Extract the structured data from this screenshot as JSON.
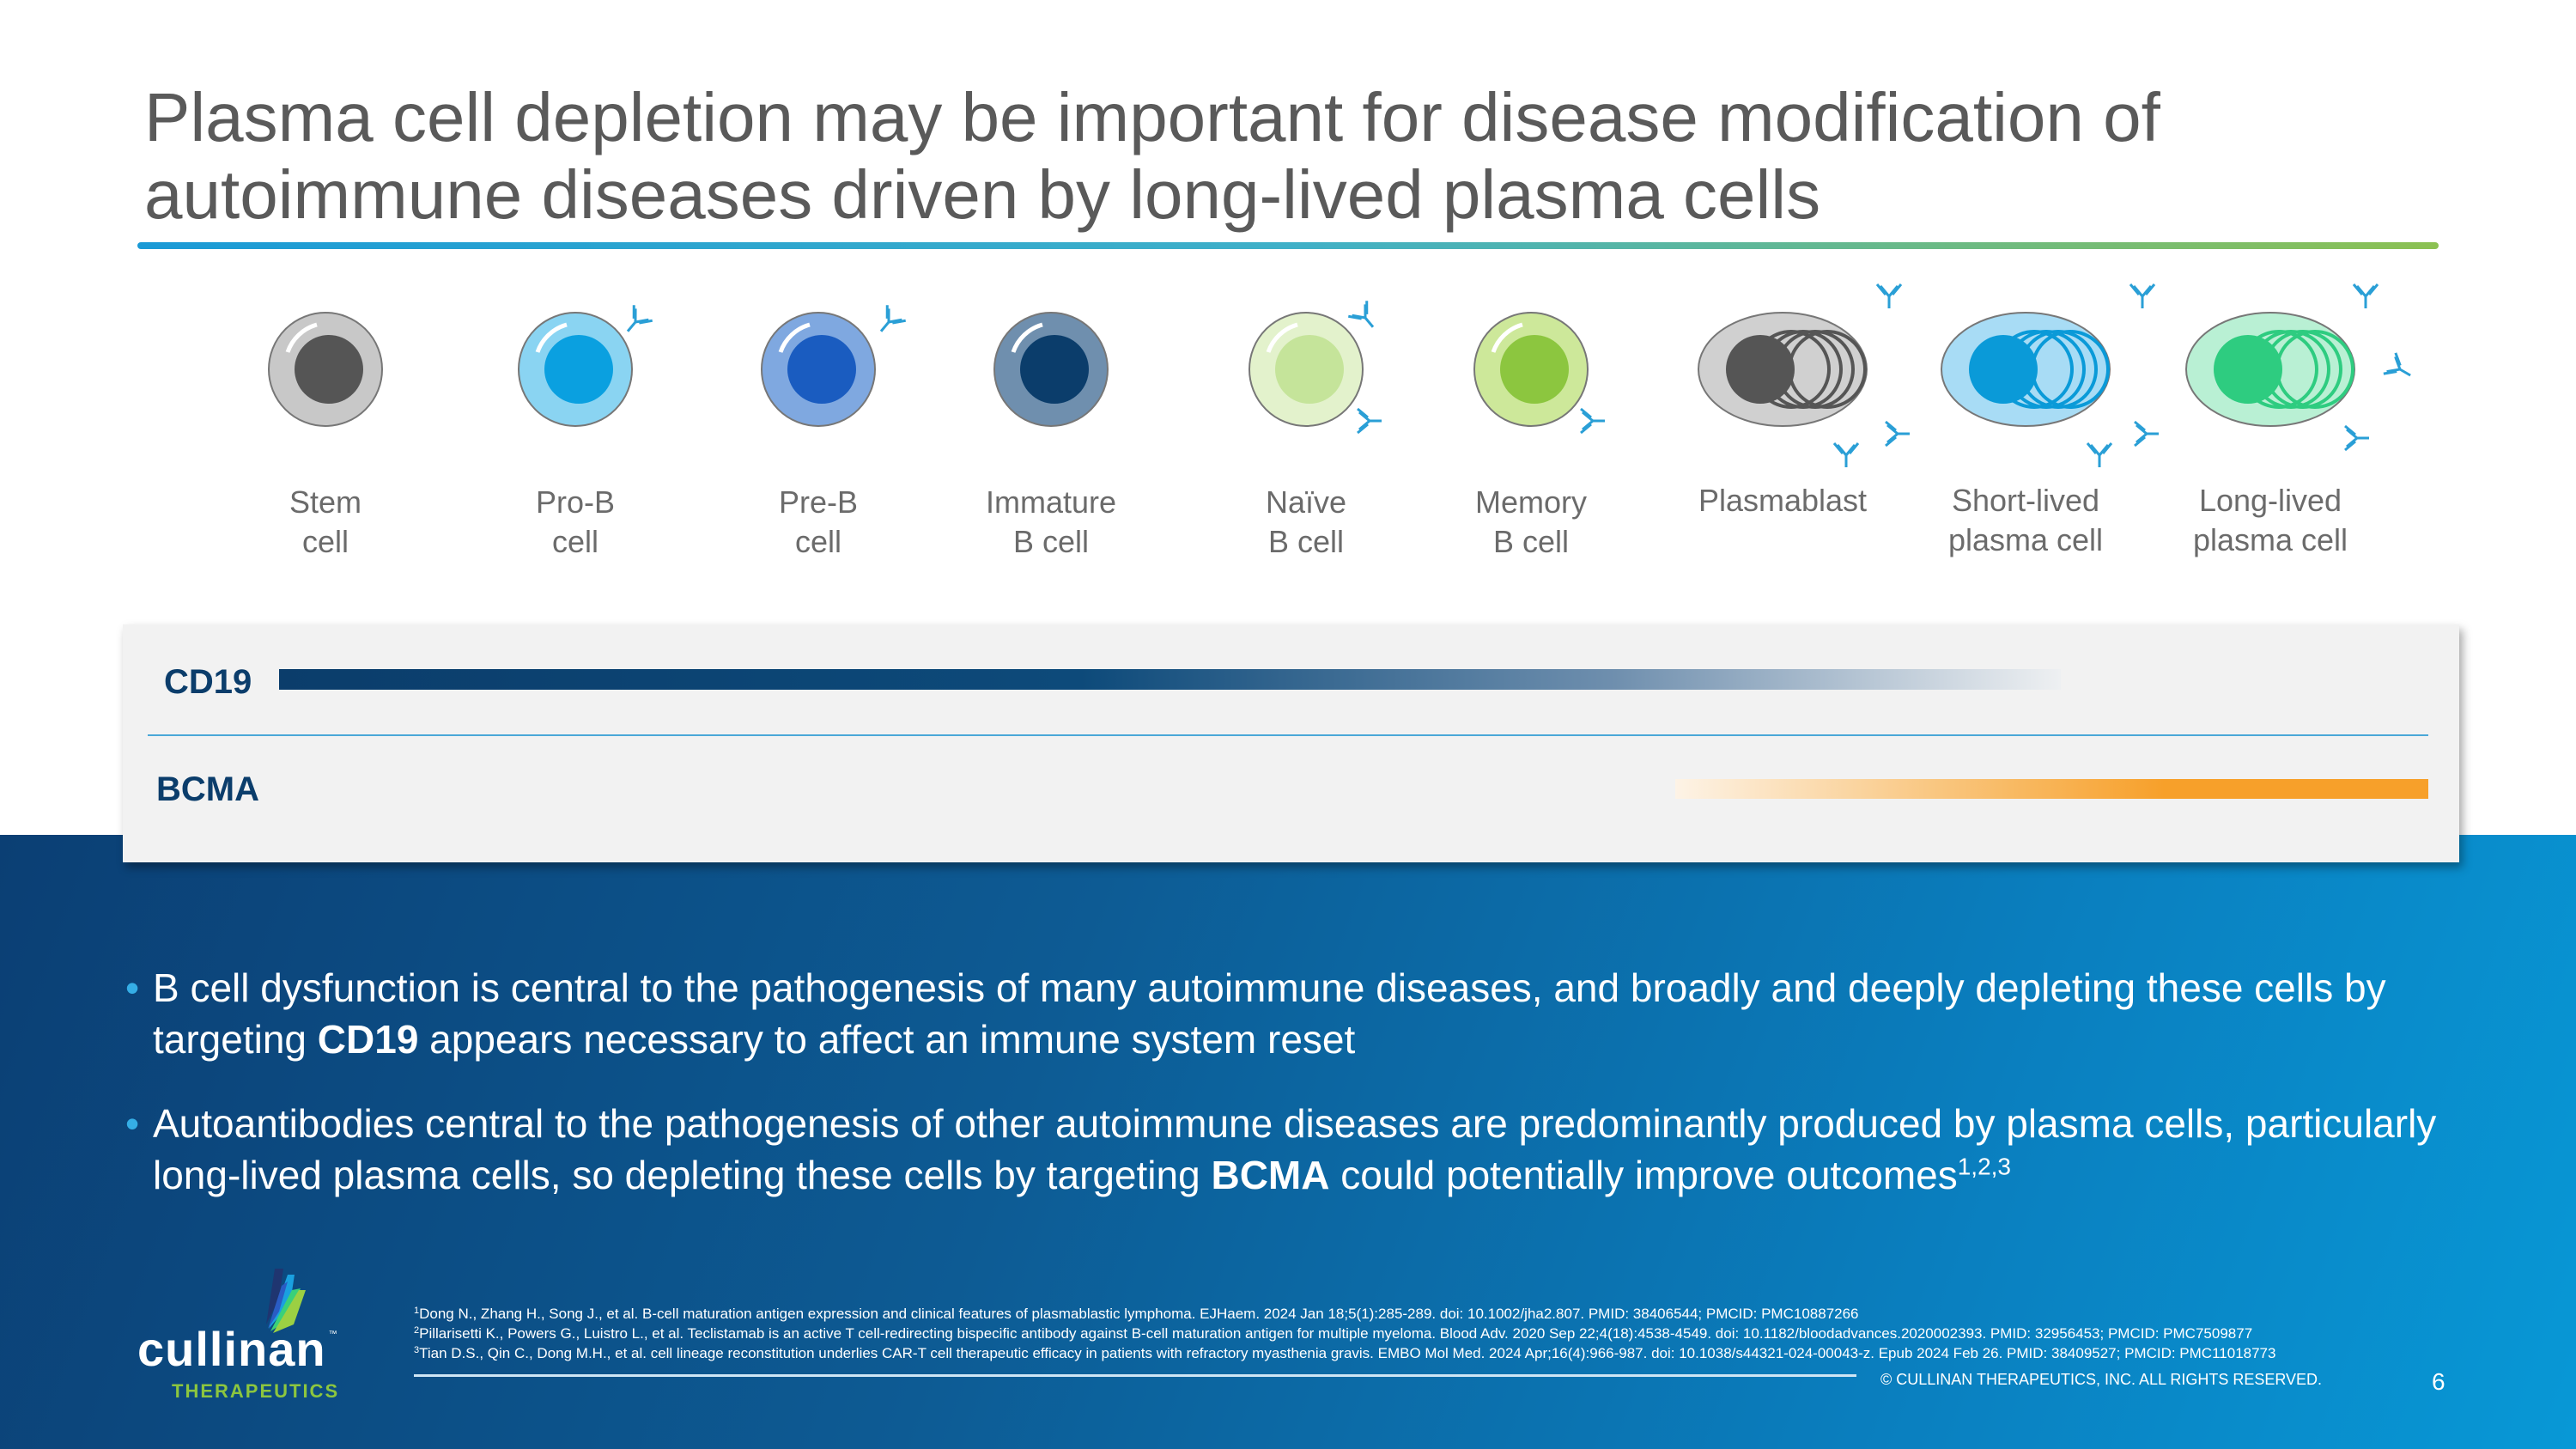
{
  "title": {
    "line1": "Plasma cell depletion may be important for disease modification of",
    "line2": "autoimmune diseases driven by long-lived plasma cells"
  },
  "cells": [
    {
      "l1": "Stem",
      "l2": "cell"
    },
    {
      "l1": "Pro-B",
      "l2": "cell"
    },
    {
      "l1": "Pre-B",
      "l2": "cell"
    },
    {
      "l1": "Immature",
      "l2": "B cell"
    },
    {
      "l1": "Naïve",
      "l2": "B cell"
    },
    {
      "l1": "Memory",
      "l2": "B cell"
    },
    {
      "l1": "Plasmablast",
      "l2": ""
    },
    {
      "l1": "Short-lived",
      "l2": "plasma cell"
    },
    {
      "l1": "Long-lived",
      "l2": "plasma cell"
    }
  ],
  "markers": {
    "cd19": "CD19",
    "bcma": "BCMA",
    "cd19_color": "#0b3d6b",
    "bcma_color": "#f7a02a"
  },
  "bullets": [
    {
      "pre": "B cell dysfunction is central to the pathogenesis of many autoimmune diseases, and broadly and deeply depleting these cells by targeting ",
      "bold": "CD19",
      "post": " appears necessary to affect an immune system reset",
      "sup": ""
    },
    {
      "pre": "Autoantibodies central to the pathogenesis of other autoimmune diseases are predominantly produced by plasma cells, particularly long-lived plasma cells, so depleting these cells by targeting ",
      "bold": "BCMA",
      "post": " could potentially improve outcomes",
      "sup": "1,2,3"
    }
  ],
  "footnotes": [
    {
      "n": "1",
      "text": "Dong N., Zhang H., Song J., et al. B-cell maturation antigen expression and clinical features of plasmablastic lymphoma. EJHaem. 2024 Jan 18;5(1):285-289. doi: 10.1002/jha2.807. PMID: 38406544; PMCID: PMC10887266"
    },
    {
      "n": "2",
      "text": "Pillarisetti K., Powers G., Luistro L., et al. Teclistamab is an active T cell-redirecting bispecific antibody against B-cell maturation antigen for multiple myeloma. Blood Adv. 2020 Sep 22;4(18):4538-4549. doi: 10.1182/bloodadvances.2020002393. PMID: 32956453; PMCID: PMC7509877"
    },
    {
      "n": "3",
      "text": "Tian D.S., Qin C., Dong M.H., et al. cell lineage reconstitution underlies CAR-T cell therapeutic efficacy in patients with refractory myasthenia gravis. EMBO Mol Med. 2024 Apr;16(4):966-987. doi: 10.1038/s44321-024-00043-z. Epub 2024 Feb 26. PMID: 38409527; PMCID: PMC11018773"
    }
  ],
  "footer": {
    "copyright": "© CULLINAN THERAPEUTICS, INC. ALL RIGHTS RESERVED.",
    "page": "6"
  },
  "logo": {
    "name": "cullinan",
    "tm": "™",
    "sub": "THERAPEUTICS"
  }
}
